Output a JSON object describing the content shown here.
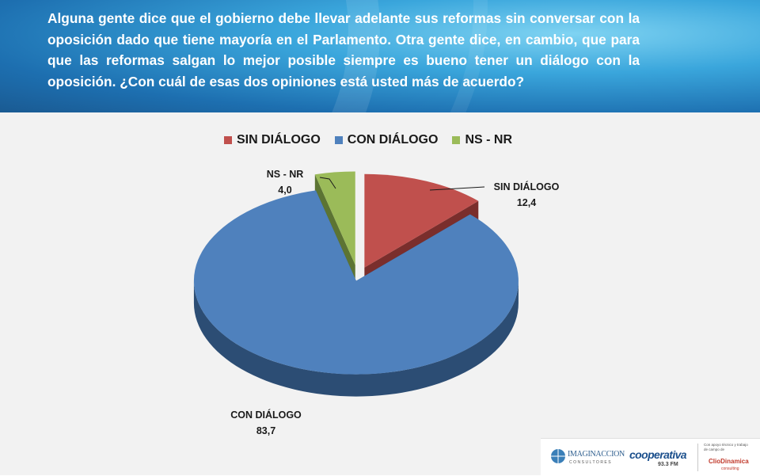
{
  "question": "Alguna gente dice que el gobierno debe llevar adelante sus reformas sin conversar con la oposición dado que tiene mayoría en el Parlamento.   Otra gente dice, en cambio, que para que las reformas salgan lo mejor posible siempre es bueno tener un diálogo con la oposición. ¿Con cuál de esas dos opiniones está usted más de acuerdo?",
  "chart_data": {
    "type": "pie",
    "categories": [
      "SIN  DIÁLOGO",
      "CON DIÁLOGO",
      "NS - NR"
    ],
    "values": [
      12.4,
      83.7,
      4.0
    ],
    "value_labels": [
      "12,4",
      "83,7",
      "4,0"
    ],
    "colors": [
      "#c0504d",
      "#4f81bd",
      "#9bbb59"
    ],
    "side_colors": [
      "#7a2e2c",
      "#2c4d74",
      "#5c7433"
    ],
    "legend_position": "top",
    "style": "3d-exploded"
  },
  "footer": {
    "logo1_text": "IMAGINACCION",
    "logo1_sub": "CONSULTORES",
    "logo2_text": "cooperativa",
    "logo2_sub": "93.3 FM",
    "logo3_caption": "Con apoyo técnico y trabajo de campo de",
    "logo3_text": "ClioDinamica",
    "logo3_sub": "consulting"
  }
}
